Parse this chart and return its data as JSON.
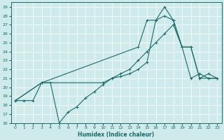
{
  "xlabel": "Humidex (Indice chaleur)",
  "background_color": "#cfeaea",
  "line_color": "#1a6b6b",
  "xlim": [
    -0.5,
    23.5
  ],
  "ylim": [
    16,
    29.5
  ],
  "xticks": [
    0,
    1,
    2,
    3,
    4,
    5,
    6,
    7,
    8,
    9,
    10,
    11,
    12,
    13,
    14,
    15,
    16,
    17,
    18,
    19,
    20,
    21,
    22,
    23
  ],
  "yticks": [
    16,
    17,
    18,
    19,
    20,
    21,
    22,
    23,
    24,
    25,
    26,
    27,
    28,
    29
  ],
  "line1_x": [
    0,
    1,
    2,
    3,
    4,
    5,
    6,
    7,
    8,
    9,
    10,
    11,
    12,
    13,
    14,
    15,
    16,
    17,
    18,
    19,
    20,
    21,
    22,
    23
  ],
  "line1_y": [
    18.5,
    18.5,
    18.5,
    20.5,
    20.5,
    16.0,
    17.2,
    17.8,
    18.8,
    19.5,
    20.3,
    21.0,
    21.2,
    21.5,
    22.0,
    22.8,
    27.5,
    28.0,
    27.5,
    24.5,
    21.0,
    21.5,
    21.0,
    21.0
  ],
  "line2_x": [
    0,
    3,
    14,
    15,
    16,
    17,
    18,
    19,
    20,
    21,
    22,
    23
  ],
  "line2_y": [
    18.5,
    20.5,
    24.5,
    27.5,
    27.5,
    29.0,
    27.5,
    24.5,
    24.5,
    21.0,
    21.5,
    21.0
  ],
  "line3_x": [
    0,
    3,
    10,
    11,
    12,
    13,
    14,
    15,
    16,
    17,
    18,
    19,
    20,
    21,
    22,
    23
  ],
  "line3_y": [
    18.5,
    20.5,
    20.5,
    21.0,
    21.5,
    22.0,
    23.0,
    24.0,
    25.0,
    26.0,
    27.0,
    24.5,
    24.5,
    21.0,
    21.0,
    21.0
  ]
}
